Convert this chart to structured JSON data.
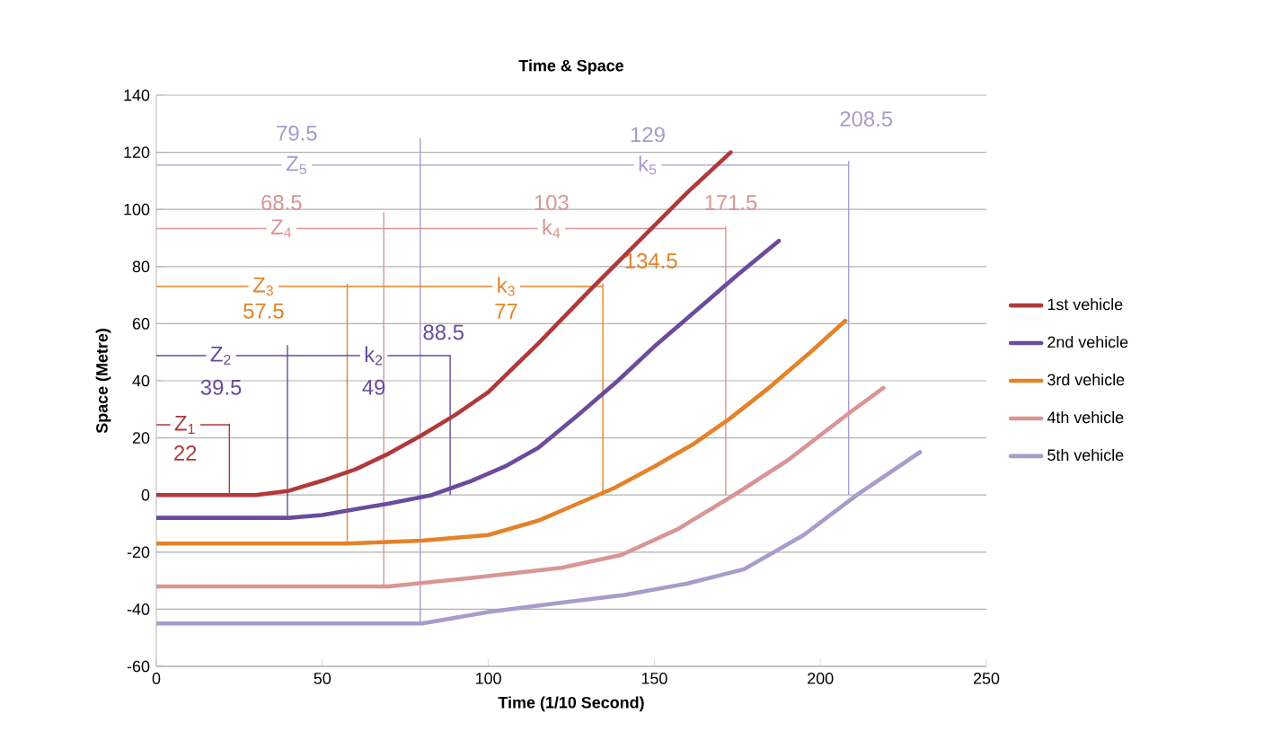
{
  "chart_data": {
    "type": "line",
    "title": "Time & Space",
    "xlabel": "Time (1/10 Second)",
    "ylabel": "Space (Metre)",
    "xlim": [
      0,
      250
    ],
    "xticks": [
      0,
      50,
      100,
      150,
      200,
      250
    ],
    "ylim": [
      -60,
      140
    ],
    "yticks": [
      -60,
      -40,
      -20,
      0,
      20,
      40,
      60,
      80,
      100,
      120,
      140
    ],
    "grid": "y",
    "legend": "right",
    "series": [
      {
        "name": "1st vehicle",
        "color": "#b0393b",
        "x": [
          0,
          30,
          40,
          50,
          60,
          70,
          80,
          90,
          100,
          115,
          130,
          148,
          160,
          173
        ],
        "values": [
          0,
          0,
          1.5,
          5,
          9,
          14.5,
          21,
          28,
          36,
          53,
          71,
          92,
          106,
          120
        ]
      },
      {
        "name": "2nd vehicle",
        "color": "#6a4b9c",
        "x": [
          0,
          40,
          50,
          60,
          70,
          83,
          95,
          105,
          115,
          127,
          139,
          150,
          163,
          175,
          187.5
        ],
        "values": [
          -8,
          -8,
          -7,
          -5,
          -3,
          0,
          5,
          10,
          16.5,
          28,
          40,
          52,
          65,
          77,
          89
        ]
      },
      {
        "name": "3rd vehicle",
        "color": "#e4822a",
        "x": [
          0,
          57.5,
          80,
          100,
          115,
          127,
          138,
          150,
          162,
          173,
          185,
          197,
          207.5
        ],
        "values": [
          -17,
          -17,
          -16,
          -14,
          -9,
          -3,
          2.5,
          10,
          18,
          27,
          38,
          50,
          61
        ]
      },
      {
        "name": "4th vehicle",
        "color": "#d99594",
        "x": [
          0,
          70,
          95,
          122,
          140,
          157,
          174,
          190,
          209,
          219
        ],
        "values": [
          -32,
          -32,
          -29,
          -25.5,
          -21,
          -12,
          0,
          12,
          29,
          37.5
        ]
      },
      {
        "name": "5th vehicle",
        "color": "#a99bcb",
        "x": [
          0,
          80,
          100,
          120,
          141,
          160,
          177,
          195,
          211,
          230
        ],
        "values": [
          -45,
          -45,
          -41,
          -38,
          -35,
          -31,
          -26,
          -14,
          0,
          15
        ]
      }
    ],
    "ref_lines": [
      {
        "axis": "x",
        "value": 22,
        "label": "22",
        "color": "#b0393b"
      },
      {
        "axis": "x",
        "value": 39.5,
        "label": "39.5",
        "color": "#6a4b9c"
      },
      {
        "axis": "x",
        "value": 57.5,
        "label": "57.5",
        "color": "#e4822a"
      },
      {
        "axis": "x",
        "value": 68.5,
        "label": "68.5",
        "color": "#d99594"
      },
      {
        "axis": "x",
        "value": 79.5,
        "label": "79.5",
        "color": "#a99bcb"
      },
      {
        "axis": "x",
        "value": 88.5,
        "label": "88.5",
        "color": "#6a4b9c"
      },
      {
        "axis": "x",
        "value": 134.5,
        "label": "134.5",
        "color": "#e4822a"
      },
      {
        "axis": "x",
        "value": 171.5,
        "label": "171.5",
        "color": "#d99594"
      },
      {
        "axis": "x",
        "value": 208.5,
        "label": "208.5",
        "color": "#a99bcb"
      }
    ],
    "annotations": [
      "Z$_{1}$",
      "Z$_{2}$",
      "k$_{2}$",
      "49",
      "Z$_{3}$",
      "k$_{3}$",
      "77",
      "Z$_{4}$",
      {
        "text": "k$_{4}$",
        "x": 171.5,
        "y": 93.3
      },
      "103",
      "Z$_{5}$",
      {
        "text": "k$_{5}$",
        "x": 208.5,
        "y": 115.5
      },
      "129"
    ]
  }
}
